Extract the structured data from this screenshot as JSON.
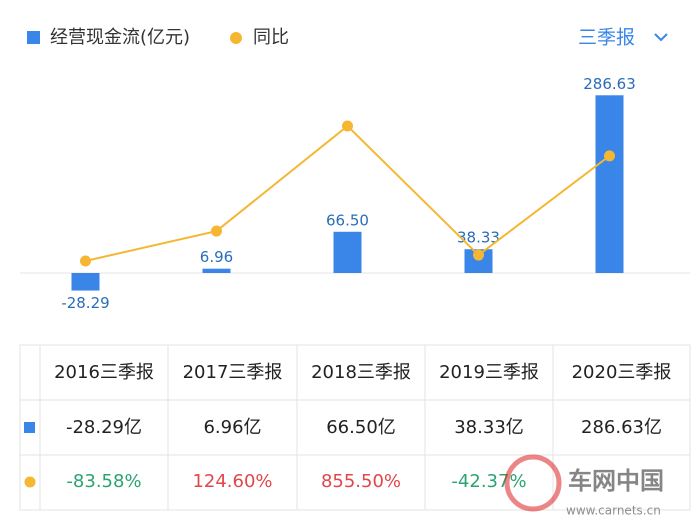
{
  "chart_data": {
    "type": "bar-line",
    "categories": [
      "2016三季报",
      "2017三季报",
      "2018三季报",
      "2019三季报",
      "2020三季报"
    ],
    "series": [
      {
        "name": "经营现金流(亿元)",
        "color": "#3a86e8",
        "type": "bar",
        "values": [
          -28.29,
          6.96,
          66.5,
          38.33,
          286.63
        ],
        "value_labels": [
          "-28.29",
          "6.96",
          "66.50",
          "38.33",
          "286.63"
        ]
      },
      {
        "name": "同比",
        "color": "#f5b731",
        "type": "line",
        "axis": "y2",
        "values": [
          -83.58,
          124.6,
          855.5,
          -42.37,
          647.8
        ],
        "value_labels": [
          "-83.58%",
          "124.60%",
          "855.50%",
          "-42.37%",
          null
        ]
      }
    ],
    "ylim": [
      -50,
      300
    ],
    "y2lim": [
      -383,
      1127
    ]
  },
  "period_selector": "三季报",
  "table": {
    "bar_row": [
      "-28.29亿",
      "6.96亿",
      "66.50亿",
      "38.33亿",
      "286.63亿"
    ]
  },
  "watermark": {
    "title": "车网中国",
    "url": "www.carnets.cn"
  }
}
